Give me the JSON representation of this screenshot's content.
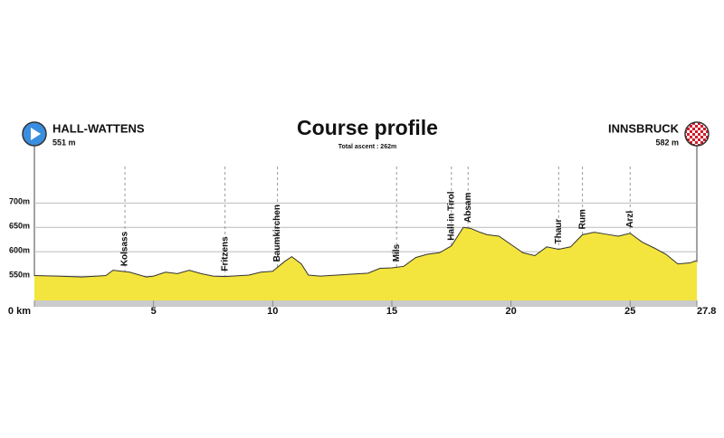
{
  "chart_data": {
    "type": "area",
    "title": "Course profile",
    "subtitle": "Total ascent : 262m",
    "start": {
      "name": "HALL-WATTENS",
      "elevation": "551 m"
    },
    "finish": {
      "name": "INNSBRUCK",
      "elevation": "582 m"
    },
    "x": [
      0,
      1,
      2,
      3,
      3.3,
      4,
      4.7,
      5,
      5.5,
      6,
      6.5,
      7,
      7.5,
      8,
      9,
      9.5,
      10,
      10.5,
      10.8,
      11.2,
      11.5,
      12,
      13,
      14,
      14.5,
      15,
      15.5,
      16,
      16.5,
      17,
      17.5,
      18,
      18.3,
      18.7,
      19,
      19.5,
      20,
      20.5,
      21,
      21.5,
      22,
      22.5,
      23,
      23.5,
      24,
      24.5,
      25,
      25.5,
      26,
      26.5,
      27,
      27.5,
      27.8
    ],
    "values": [
      551,
      550,
      548,
      551,
      562,
      558,
      548,
      550,
      558,
      555,
      562,
      555,
      550,
      549,
      552,
      558,
      560,
      580,
      590,
      575,
      552,
      550,
      553,
      556,
      566,
      567,
      570,
      588,
      595,
      598,
      612,
      650,
      648,
      640,
      635,
      632,
      615,
      598,
      592,
      610,
      605,
      610,
      635,
      640,
      636,
      632,
      638,
      620,
      608,
      595,
      575,
      577,
      582
    ],
    "color": "#f3e53d",
    "places": [
      {
        "name": "Kolsass",
        "km": 3.8
      },
      {
        "name": "Fritzens",
        "km": 8
      },
      {
        "name": "Baumkirchen",
        "km": 10.2
      },
      {
        "name": "Mils",
        "km": 15.2
      },
      {
        "name": "Hall in Tirol",
        "km": 17.5
      },
      {
        "name": "Absam",
        "km": 18.2
      },
      {
        "name": "Thaur",
        "km": 22
      },
      {
        "name": "Rum",
        "km": 23
      },
      {
        "name": "Arzl",
        "km": 25
      }
    ],
    "xlim": [
      0,
      27.8
    ],
    "xticks": [
      {
        "value": 0,
        "label": "0 km"
      },
      5,
      10,
      15,
      20,
      25,
      27.8
    ],
    "ylim": [
      500,
      775
    ],
    "yticks": [
      {
        "value": 550,
        "label": "550m"
      },
      {
        "value": 600,
        "label": "600m"
      },
      {
        "value": 650,
        "label": "650m"
      },
      {
        "value": 700,
        "label": "700m"
      }
    ],
    "grid": true
  }
}
